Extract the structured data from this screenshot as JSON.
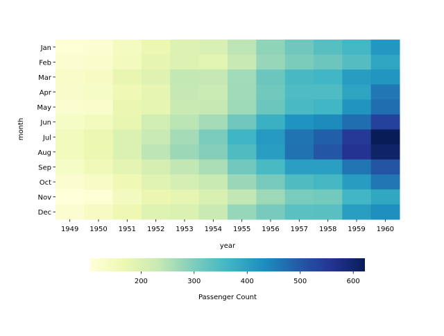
{
  "chart_data": {
    "type": "heatmap",
    "title": "",
    "xlabel": "year",
    "ylabel": "month",
    "colormap": "YlGnBu",
    "colormap_stops": [
      "#ffffd9",
      "#edf8b1",
      "#c7e9b4",
      "#7fcdbb",
      "#41b6c4",
      "#1d91c0",
      "#225ea8",
      "#253494",
      "#081d58"
    ],
    "x_categories": [
      "1949",
      "1950",
      "1951",
      "1952",
      "1953",
      "1954",
      "1955",
      "1956",
      "1957",
      "1958",
      "1959",
      "1960"
    ],
    "y_categories": [
      "Jan",
      "Feb",
      "Mar",
      "Apr",
      "May",
      "Jun",
      "Jul",
      "Aug",
      "Sep",
      "Oct",
      "Nov",
      "Dec"
    ],
    "values_by_year": [
      [
        112,
        118,
        132,
        129,
        121,
        135,
        148,
        148,
        136,
        119,
        104,
        118
      ],
      [
        115,
        126,
        141,
        135,
        125,
        149,
        170,
        170,
        158,
        133,
        114,
        140
      ],
      [
        145,
        150,
        178,
        163,
        172,
        178,
        199,
        199,
        184,
        162,
        146,
        166
      ],
      [
        171,
        180,
        193,
        181,
        183,
        218,
        230,
        242,
        209,
        191,
        172,
        194
      ],
      [
        196,
        196,
        236,
        235,
        229,
        243,
        264,
        272,
        237,
        211,
        180,
        201
      ],
      [
        204,
        188,
        235,
        227,
        234,
        264,
        302,
        293,
        259,
        229,
        203,
        229
      ],
      [
        242,
        233,
        267,
        269,
        270,
        315,
        364,
        347,
        312,
        274,
        237,
        278
      ],
      [
        284,
        277,
        317,
        313,
        318,
        374,
        413,
        405,
        355,
        306,
        271,
        306
      ],
      [
        315,
        301,
        356,
        348,
        355,
        422,
        465,
        467,
        404,
        347,
        305,
        336
      ],
      [
        340,
        318,
        362,
        348,
        363,
        435,
        491,
        505,
        404,
        359,
        310,
        337
      ],
      [
        360,
        342,
        406,
        396,
        420,
        472,
        548,
        559,
        463,
        407,
        362,
        405
      ],
      [
        417,
        391,
        419,
        461,
        472,
        535,
        622,
        606,
        508,
        461,
        390,
        432
      ]
    ],
    "colorbar": {
      "label": "Passenger Count",
      "range": [
        104,
        622
      ],
      "ticks": [
        200,
        300,
        400,
        500,
        600
      ],
      "tick_labels": [
        "200",
        "300",
        "400",
        "500",
        "600"
      ],
      "orientation": "horizontal",
      "placement": "bottom"
    }
  }
}
